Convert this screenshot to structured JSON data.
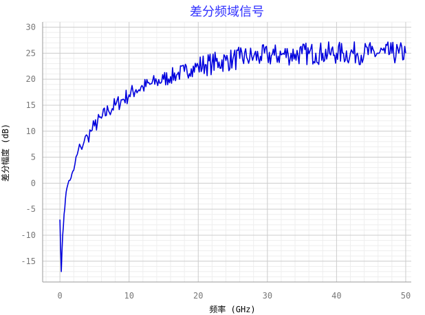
{
  "chart_data": {
    "type": "line",
    "title": "差分频域信号",
    "xlabel": "频率 (GHz)",
    "ylabel": "差分幅度 (dB)",
    "xlim": [
      -2.5,
      50.8
    ],
    "ylim": [
      -19,
      31
    ],
    "xticks": [
      0,
      10,
      20,
      30,
      40,
      50
    ],
    "yticks": [
      -15,
      -10,
      -5,
      0,
      5,
      10,
      15,
      20,
      25,
      30
    ],
    "grid": true,
    "minor_grid": true,
    "legend": "none",
    "line_color": "#0000dd",
    "title_color": "#3030ff",
    "series": [
      {
        "x": [
          0.0,
          0.2,
          0.4,
          0.6,
          0.8,
          1.0,
          1.3,
          1.6,
          2.0,
          2.5,
          3.0,
          3.5,
          4.0,
          4.5,
          5.0,
          6.0,
          7.0,
          8.0,
          9.0,
          10.0,
          11.0,
          12.0,
          13.0,
          14.0,
          15.0,
          16.0,
          17.0,
          18.0,
          19.0,
          20.0,
          21.0,
          22.0,
          23.0,
          24.0,
          25.0,
          26.0,
          27.0,
          28.0,
          29.0,
          30.0,
          31.0,
          32.0,
          33.0,
          34.0,
          35.0,
          36.0,
          37.0,
          38.0,
          39.0,
          40.0,
          41.0,
          42.0,
          43.0,
          44.0,
          45.0,
          46.0,
          47.0,
          48.0,
          49.0,
          50.0
        ],
        "y": [
          -7.0,
          -17.0,
          -10.0,
          -6.0,
          -3.0,
          -1.0,
          0.5,
          1.0,
          2.5,
          5.5,
          7.0,
          8.0,
          9.0,
          10.0,
          11.0,
          12.5,
          14.0,
          15.0,
          16.0,
          17.0,
          18.0,
          18.5,
          19.0,
          19.5,
          20.0,
          20.5,
          21.0,
          21.5,
          22.0,
          22.5,
          22.8,
          23.0,
          23.3,
          23.6,
          23.8,
          24.0,
          24.2,
          24.3,
          24.4,
          24.5,
          24.6,
          24.7,
          24.8,
          24.8,
          24.9,
          24.9,
          25.0,
          25.0,
          25.0,
          25.0,
          25.0,
          25.0,
          25.0,
          25.0,
          25.0,
          25.0,
          25.0,
          25.0,
          25.0,
          25.0
        ]
      }
    ]
  }
}
